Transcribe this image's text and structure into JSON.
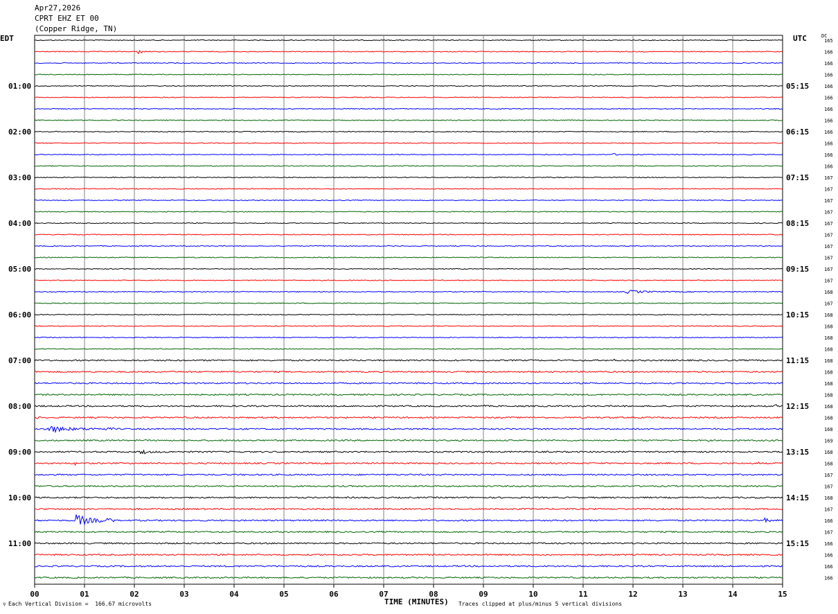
{
  "header": {
    "date": "Apr27,2026",
    "station": "CPRT EHZ ET 00",
    "location": "(Copper Ridge, TN)"
  },
  "left_timezone": "EDT",
  "right_timezone": "UTC",
  "dc_label": "DC",
  "footer": {
    "scale_note": "Each Vertical Division =  166.67 microvolts",
    "clip_note": "Traces clipped at plus/minus 5 vertical divisions"
  },
  "colors": {
    "trace_cycle": [
      "#000000",
      "#ff0000",
      "#0000ff",
      "#006400"
    ],
    "grid": "#808080"
  },
  "chart_data": {
    "type": "line",
    "title": "",
    "xlabel": "TIME (MINUTES)",
    "xlim": [
      0,
      15
    ],
    "x_ticks": [
      "00",
      "01",
      "02",
      "03",
      "04",
      "05",
      "06",
      "07",
      "08",
      "09",
      "10",
      "11",
      "12",
      "13",
      "14",
      "15"
    ],
    "trace_count": 48,
    "minutes_per_trace": 15,
    "left_hour_labels": [
      {
        "trace": 4,
        "label": "01:00"
      },
      {
        "trace": 8,
        "label": "02:00"
      },
      {
        "trace": 12,
        "label": "03:00"
      },
      {
        "trace": 16,
        "label": "04:00"
      },
      {
        "trace": 20,
        "label": "05:00"
      },
      {
        "trace": 24,
        "label": "06:00"
      },
      {
        "trace": 28,
        "label": "07:00"
      },
      {
        "trace": 32,
        "label": "08:00"
      },
      {
        "trace": 36,
        "label": "09:00"
      },
      {
        "trace": 40,
        "label": "10:00"
      },
      {
        "trace": 44,
        "label": "11:00"
      }
    ],
    "right_hour_labels": [
      {
        "trace": 4,
        "label": "05:15"
      },
      {
        "trace": 8,
        "label": "06:15"
      },
      {
        "trace": 12,
        "label": "07:15"
      },
      {
        "trace": 16,
        "label": "08:15"
      },
      {
        "trace": 20,
        "label": "09:15"
      },
      {
        "trace": 24,
        "label": "10:15"
      },
      {
        "trace": 28,
        "label": "11:15"
      },
      {
        "trace": 32,
        "label": "12:15"
      },
      {
        "trace": 36,
        "label": "13:15"
      },
      {
        "trace": 40,
        "label": "14:15"
      },
      {
        "trace": 44,
        "label": "15:15"
      }
    ],
    "dc_offsets": [
      "165",
      "166",
      "166",
      "166",
      "166",
      "166",
      "166",
      "166",
      "166",
      "166",
      "166",
      "166",
      "167",
      "167",
      "167",
      "167",
      "167",
      "167",
      "167",
      "167",
      "167",
      "167",
      "168",
      "167",
      "168",
      "168",
      "168",
      "168",
      "168",
      "168",
      "168",
      "168",
      "168",
      "168",
      "168",
      "169",
      "168",
      "168",
      "167",
      "167",
      "168",
      "167",
      "166",
      "167",
      "166",
      "166",
      "166",
      "166"
    ],
    "events": [
      {
        "trace": 1,
        "start_min": 2.05,
        "end_min": 2.35,
        "amplitude": 5
      },
      {
        "trace": 6,
        "start_min": 1.25,
        "end_min": 1.45,
        "amplitude": 2
      },
      {
        "trace": 10,
        "start_min": 11.6,
        "end_min": 11.7,
        "amplitude": 4
      },
      {
        "trace": 22,
        "start_min": 11.8,
        "end_min": 13.6,
        "amplitude": 3
      },
      {
        "trace": 28,
        "start_min": 11.6,
        "end_min": 12.1,
        "amplitude": 2
      },
      {
        "trace": 32,
        "start_min": 9.0,
        "end_min": 9.3,
        "amplitude": 2
      },
      {
        "trace": 32,
        "start_min": 14.85,
        "end_min": 15.0,
        "amplitude": 4
      },
      {
        "trace": 33,
        "start_min": 0.0,
        "end_min": 0.4,
        "amplitude": 3
      },
      {
        "trace": 34,
        "start_min": 0.2,
        "end_min": 1.6,
        "amplitude": 7
      },
      {
        "trace": 36,
        "start_min": 2.1,
        "end_min": 2.7,
        "amplitude": 5
      },
      {
        "trace": 37,
        "start_min": 0.8,
        "end_min": 0.9,
        "amplitude": 4
      },
      {
        "trace": 37,
        "start_min": 14.5,
        "end_min": 14.6,
        "amplitude": 4
      },
      {
        "trace": 42,
        "start_min": 0.8,
        "end_min": 1.6,
        "amplitude": 12
      },
      {
        "trace": 42,
        "start_min": 14.6,
        "end_min": 15.0,
        "amplitude": 5
      }
    ]
  }
}
